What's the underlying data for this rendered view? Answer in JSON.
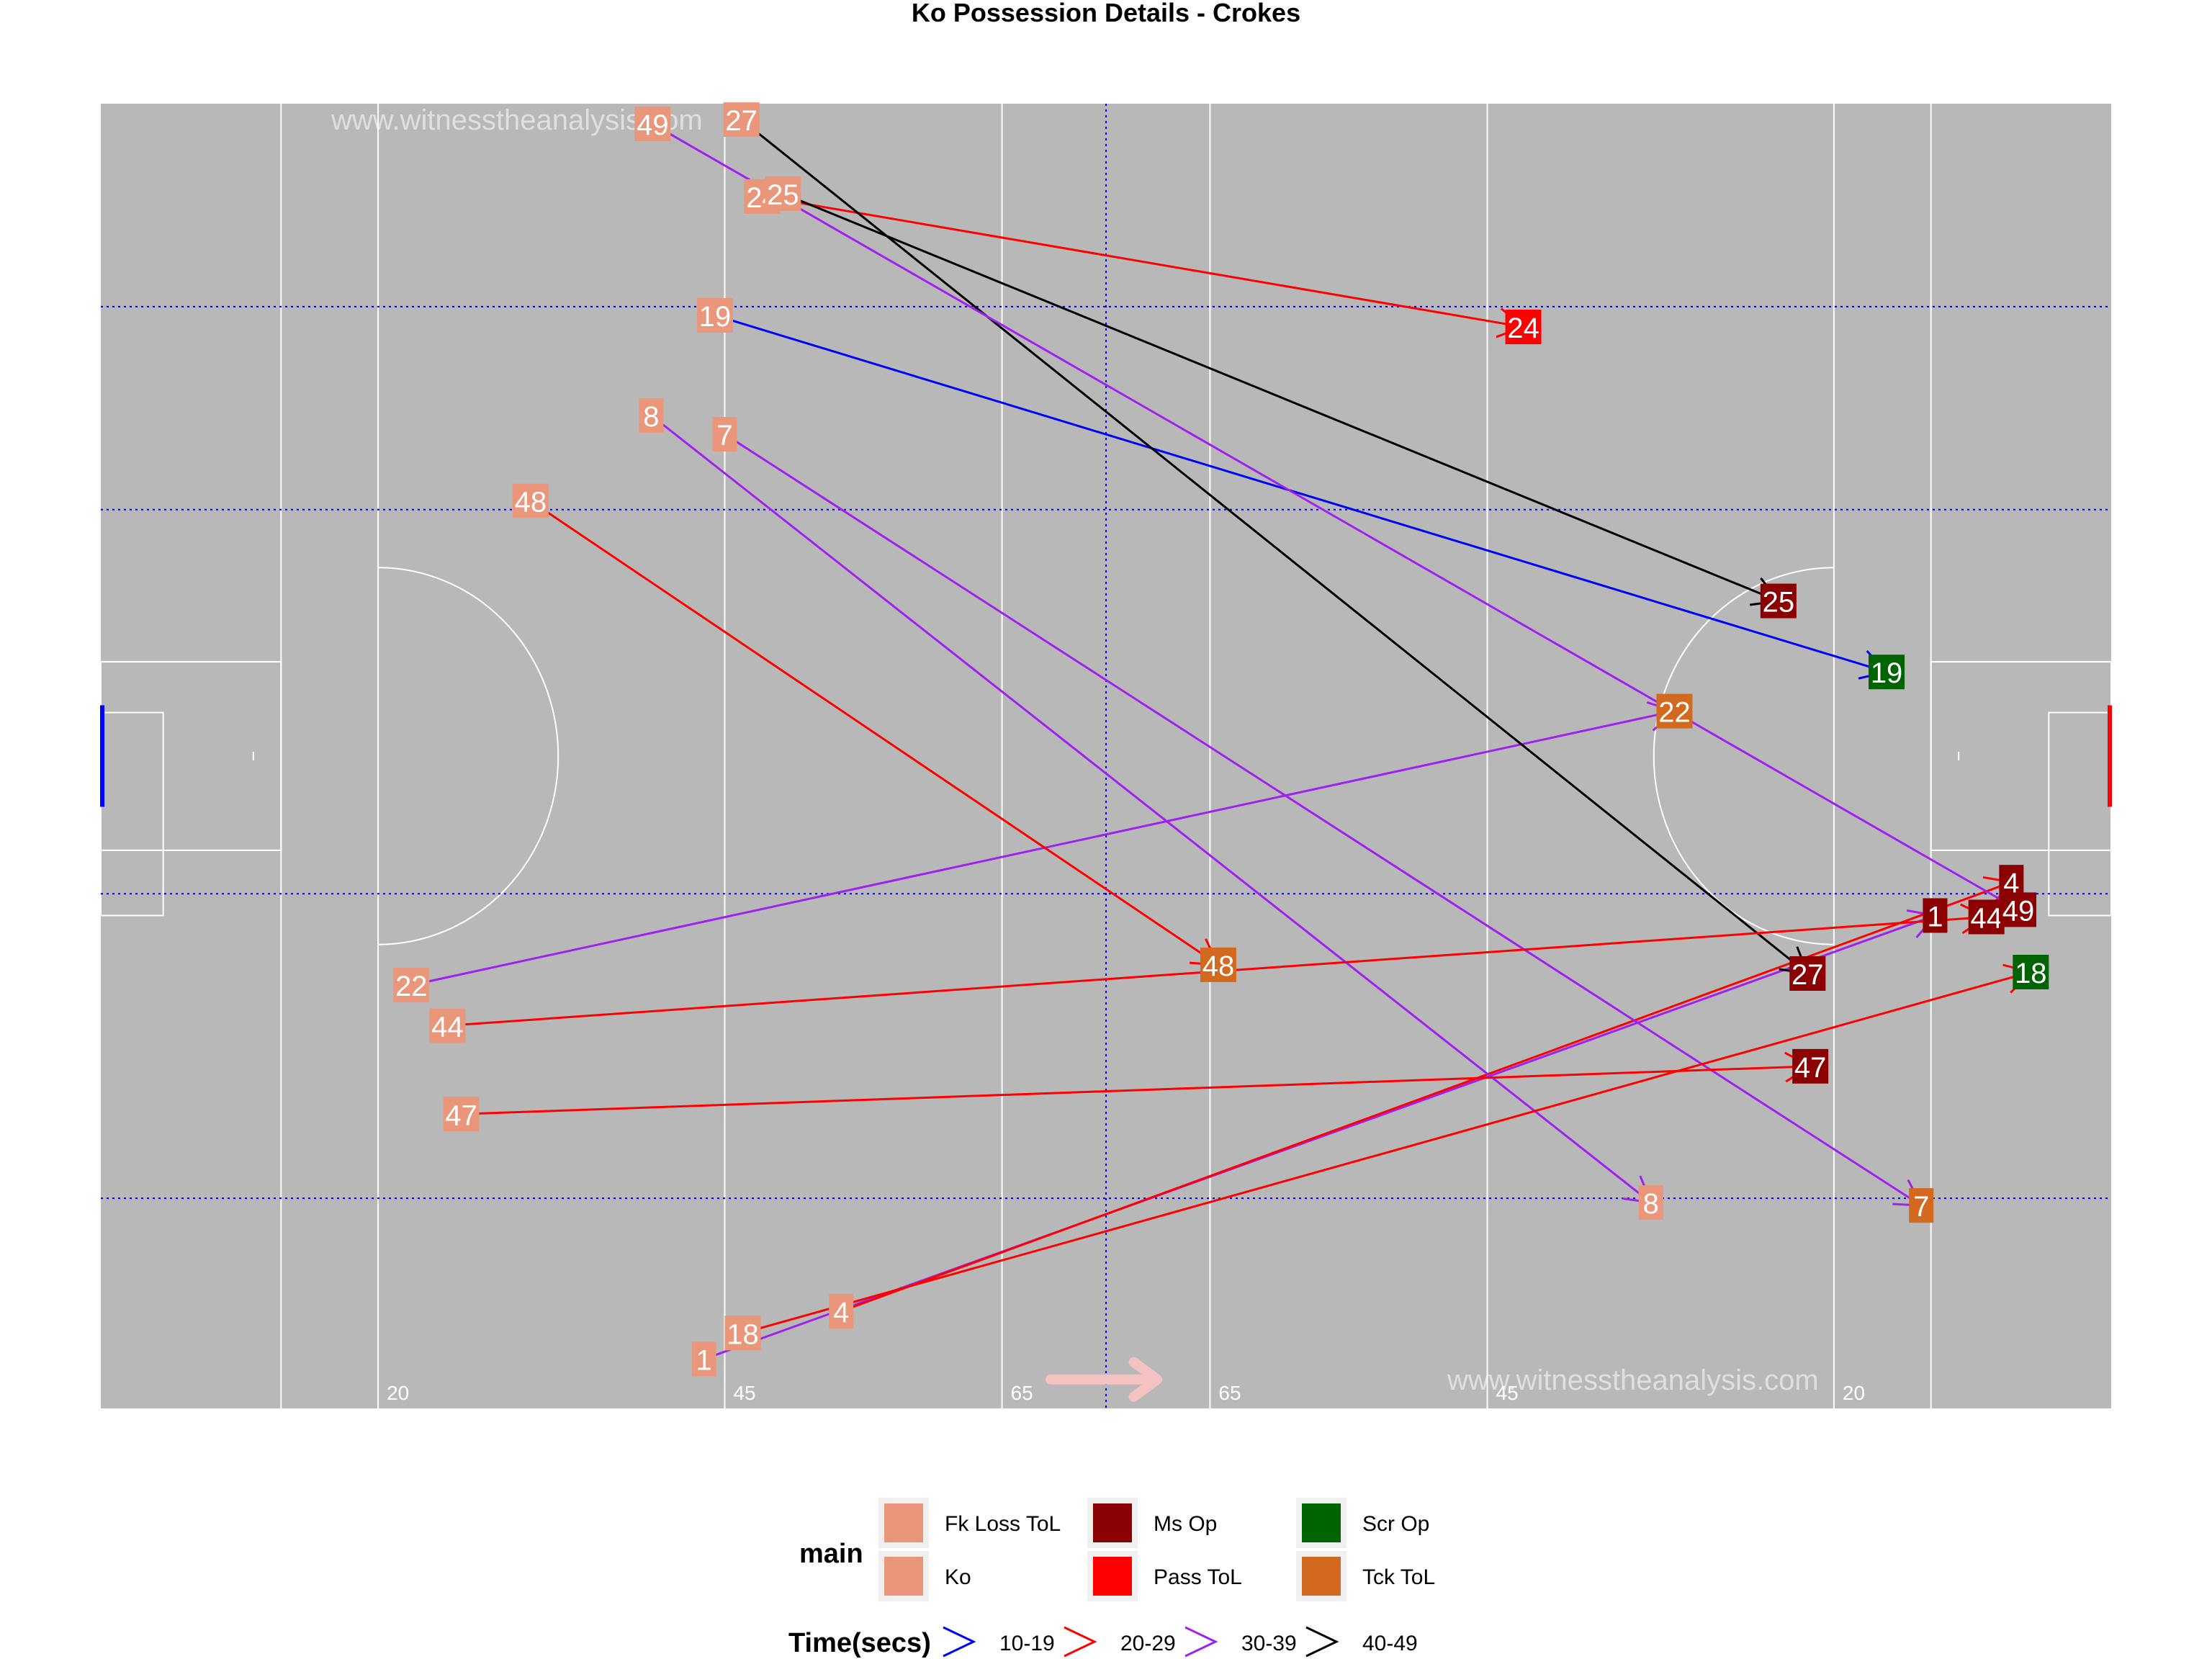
{
  "chart_data": {
    "type": "scatter",
    "title": "Ko Possession Details - Crokes",
    "watermark": "www.witnesstheanalysis.com",
    "x_range": [
      0,
      145
    ],
    "y_range": [
      0,
      90
    ],
    "yard_labels": [
      "20",
      "45",
      "65",
      "65",
      "45",
      "20"
    ],
    "legend_main": {
      "title": "main",
      "entries": [
        {
          "label": "Fk Loss ToL",
          "color": "#E9967A"
        },
        {
          "label": "Ko",
          "color": "#E9967A"
        },
        {
          "label": "Ms Op",
          "color": "#8B0000"
        },
        {
          "label": "Pass ToL",
          "color": "#FF0000"
        },
        {
          "label": "Scr Op",
          "color": "#006400"
        },
        {
          "label": "Tck ToL",
          "color": "#D2691E"
        }
      ]
    },
    "legend_time": {
      "title": "Time(secs)",
      "entries": [
        {
          "label": "10-19",
          "color": "#0000FF"
        },
        {
          "label": "20-29",
          "color": "#FF0000"
        },
        {
          "label": "30-39",
          "color": "#A020F0"
        },
        {
          "label": "40-49",
          "color": "#000000"
        }
      ]
    },
    "possessions": [
      {
        "id": "1",
        "time": "30-39",
        "start": {
          "x": 43.5,
          "y": 3.4,
          "type": "Ko"
        },
        "end": {
          "x": 132.3,
          "y": 34.0,
          "label": "1",
          "type": "Ms Op"
        }
      },
      {
        "id": "4",
        "time": "20-29",
        "start": {
          "x": 53.4,
          "y": 6.7,
          "type": "Ko"
        },
        "end": {
          "x": 137.8,
          "y": 36.3,
          "label": "4",
          "type": "Ms Op"
        }
      },
      {
        "id": "7",
        "time": "30-39",
        "start": {
          "x": 45.0,
          "y": 67.2,
          "type": "Ko"
        },
        "end": {
          "x": 131.3,
          "y": 14.0,
          "label": "7",
          "type": "Tck ToL"
        }
      },
      {
        "id": "8",
        "time": "30-39",
        "start": {
          "x": 39.7,
          "y": 68.5,
          "type": "Ko"
        },
        "end": {
          "x": 111.8,
          "y": 14.2,
          "label": "8",
          "type": "Ko"
        }
      },
      {
        "id": "18",
        "time": "20-29",
        "start": {
          "x": 46.3,
          "y": 5.2,
          "type": "Ko"
        },
        "end": {
          "x": 139.2,
          "y": 30.1,
          "label": "18",
          "type": "Scr Op"
        }
      },
      {
        "id": "19",
        "time": "10-19",
        "start": {
          "x": 44.3,
          "y": 75.4,
          "type": "Ko"
        },
        "end": {
          "x": 128.8,
          "y": 50.8,
          "label": "19",
          "type": "Scr Op"
        }
      },
      {
        "id": "22",
        "time": "30-39",
        "start": {
          "x": 22.4,
          "y": 29.2,
          "type": "Ko"
        },
        "end": {
          "x": 113.5,
          "y": 48.1,
          "label": "22",
          "type": "Tck ToL"
        }
      },
      {
        "id": "24",
        "time": "20-29",
        "start": {
          "x": 47.7,
          "y": 83.6,
          "type": "Ko"
        },
        "end": {
          "x": 102.6,
          "y": 74.6,
          "label": "24",
          "type": "Pass ToL"
        }
      },
      {
        "id": "25",
        "time": "40-49",
        "start": {
          "x": 49.2,
          "y": 83.8,
          "type": "Ko"
        },
        "end": {
          "x": 121.0,
          "y": 55.7,
          "label": "25",
          "type": "Ms Op"
        }
      },
      {
        "id": "27",
        "time": "40-49",
        "start": {
          "x": 46.2,
          "y": 88.9,
          "type": "Ko"
        },
        "end": {
          "x": 123.1,
          "y": 30.0,
          "label": "27",
          "type": "Ms Op"
        }
      },
      {
        "id": "44",
        "time": "20-29",
        "start": {
          "x": 25.0,
          "y": 26.4,
          "type": "Ko"
        },
        "end": {
          "x": 136.0,
          "y": 33.9,
          "label": "44",
          "type": "Ms Op"
        }
      },
      {
        "id": "47",
        "time": "20-29",
        "start": {
          "x": 26.0,
          "y": 20.3,
          "type": "Ko"
        },
        "end": {
          "x": 123.3,
          "y": 23.6,
          "label": "47",
          "type": "Ms Op"
        }
      },
      {
        "id": "48",
        "time": "20-29",
        "start": {
          "x": 31.0,
          "y": 62.6,
          "type": "Ko"
        },
        "end": {
          "x": 80.6,
          "y": 30.6,
          "label": "48",
          "type": "Tck ToL"
        }
      },
      {
        "id": "49",
        "time": "30-39",
        "start": {
          "x": 39.8,
          "y": 88.6,
          "type": "Ko"
        },
        "end": {
          "x": 138.3,
          "y": 34.4,
          "label": "49",
          "type": "Ms Op"
        }
      }
    ]
  }
}
